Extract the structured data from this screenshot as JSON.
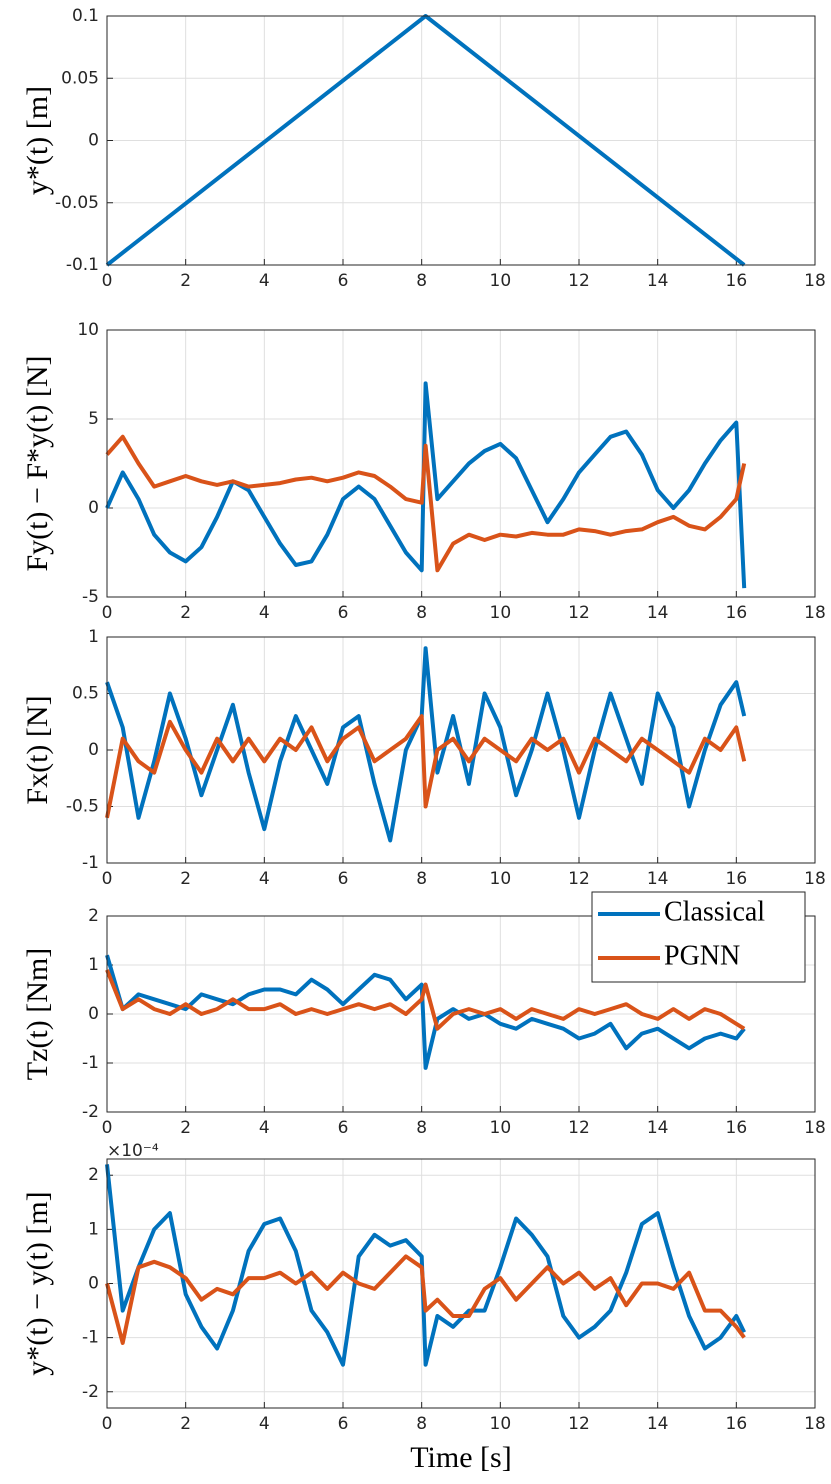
{
  "chart_data": [
    {
      "type": "line",
      "ylabel": "y*(t) [m]",
      "xlim": [
        0,
        18
      ],
      "xticks": [
        0,
        2,
        4,
        6,
        8,
        10,
        12,
        14,
        16,
        18
      ],
      "ylim": [
        -0.1,
        0.1
      ],
      "yticks": [
        -0.1,
        -0.05,
        0,
        0.05,
        0.1
      ],
      "grid": true,
      "x": [
        0,
        8.1,
        16.2
      ],
      "series": [
        {
          "color": "#0072bd",
          "values": [
            -0.1,
            0.1,
            -0.1
          ]
        }
      ]
    },
    {
      "type": "line",
      "ylabel": "Fy(t) − F*y(t) [N]",
      "xlim": [
        0,
        18
      ],
      "xticks": [
        0,
        2,
        4,
        6,
        8,
        10,
        12,
        14,
        16,
        18
      ],
      "ylim": [
        -5,
        10
      ],
      "yticks": [
        -5,
        0,
        5,
        10
      ],
      "grid": true,
      "x": [
        0,
        0.4,
        0.8,
        1.2,
        1.6,
        2.0,
        2.4,
        2.8,
        3.2,
        3.6,
        4.0,
        4.4,
        4.8,
        5.2,
        5.6,
        6.0,
        6.4,
        6.8,
        7.2,
        7.6,
        8.0,
        8.1,
        8.4,
        8.8,
        9.2,
        9.6,
        10.0,
        10.4,
        10.8,
        11.2,
        11.6,
        12.0,
        12.4,
        12.8,
        13.2,
        13.6,
        14.0,
        14.4,
        14.8,
        15.2,
        15.6,
        16.0,
        16.2
      ],
      "series": [
        {
          "color": "#0072bd",
          "values": [
            0,
            2,
            0.5,
            -1.5,
            -2.5,
            -3,
            -2.2,
            -0.5,
            1.5,
            1,
            -0.5,
            -2,
            -3.2,
            -3,
            -1.5,
            0.5,
            1.2,
            0.5,
            -1,
            -2.5,
            -3.5,
            7,
            0.5,
            1.5,
            2.5,
            3.2,
            3.6,
            2.8,
            1,
            -0.8,
            0.5,
            2,
            3,
            4,
            4.3,
            3,
            1,
            0,
            1,
            2.5,
            3.8,
            4.8,
            -4.5
          ]
        },
        {
          "color": "#d95319",
          "values": [
            3,
            4,
            2.5,
            1.2,
            1.5,
            1.8,
            1.5,
            1.3,
            1.5,
            1.2,
            1.3,
            1.4,
            1.6,
            1.7,
            1.5,
            1.7,
            2,
            1.8,
            1.2,
            0.5,
            0.3,
            3.5,
            -3.5,
            -2,
            -1.5,
            -1.8,
            -1.5,
            -1.6,
            -1.4,
            -1.5,
            -1.5,
            -1.2,
            -1.3,
            -1.5,
            -1.3,
            -1.2,
            -0.8,
            -0.5,
            -1,
            -1.2,
            -0.5,
            0.5,
            2.5
          ]
        }
      ]
    },
    {
      "type": "line",
      "ylabel": "Fx(t) [N]",
      "xlim": [
        0,
        18
      ],
      "xticks": [
        0,
        2,
        4,
        6,
        8,
        10,
        12,
        14,
        16,
        18
      ],
      "ylim": [
        -1,
        1
      ],
      "yticks": [
        -1,
        -0.5,
        0,
        0.5,
        1
      ],
      "grid": true,
      "x": [
        0,
        0.4,
        0.8,
        1.2,
        1.6,
        2.0,
        2.4,
        2.8,
        3.2,
        3.6,
        4.0,
        4.4,
        4.8,
        5.2,
        5.6,
        6.0,
        6.4,
        6.8,
        7.2,
        7.6,
        8.0,
        8.1,
        8.4,
        8.8,
        9.2,
        9.6,
        10.0,
        10.4,
        10.8,
        11.2,
        11.6,
        12.0,
        12.4,
        12.8,
        13.2,
        13.6,
        14.0,
        14.4,
        14.8,
        15.2,
        15.6,
        16.0,
        16.2
      ],
      "series": [
        {
          "color": "#0072bd",
          "values": [
            0.6,
            0.2,
            -0.6,
            -0.1,
            0.5,
            0.1,
            -0.4,
            0,
            0.4,
            -0.2,
            -0.7,
            -0.1,
            0.3,
            0,
            -0.3,
            0.2,
            0.3,
            -0.3,
            -0.8,
            0,
            0.3,
            0.9,
            -0.2,
            0.3,
            -0.3,
            0.5,
            0.2,
            -0.4,
            0,
            0.5,
            0,
            -0.6,
            0,
            0.5,
            0.1,
            -0.3,
            0.5,
            0.2,
            -0.5,
            0,
            0.4,
            0.6,
            0.3
          ]
        },
        {
          "color": "#d95319",
          "values": [
            -0.6,
            0.1,
            -0.1,
            -0.2,
            0.25,
            0,
            -0.2,
            0.1,
            -0.1,
            0.1,
            -0.1,
            0.1,
            0,
            0.2,
            -0.1,
            0.1,
            0.2,
            -0.1,
            0,
            0.1,
            0.3,
            -0.5,
            0,
            0.1,
            -0.1,
            0.1,
            0,
            -0.1,
            0.1,
            0,
            0.1,
            -0.2,
            0.1,
            0,
            -0.1,
            0.1,
            0,
            -0.1,
            -0.2,
            0.1,
            0,
            0.2,
            -0.1
          ]
        }
      ]
    },
    {
      "type": "line",
      "ylabel": "Tz(t) [Nm]",
      "xlim": [
        0,
        18
      ],
      "xticks": [
        0,
        2,
        4,
        6,
        8,
        10,
        12,
        14,
        16,
        18
      ],
      "ylim": [
        -2,
        2
      ],
      "yticks": [
        -2,
        -1,
        0,
        1,
        2
      ],
      "grid": true,
      "legend": "northeast",
      "x": [
        0,
        0.4,
        0.8,
        1.2,
        1.6,
        2.0,
        2.4,
        2.8,
        3.2,
        3.6,
        4.0,
        4.4,
        4.8,
        5.2,
        5.6,
        6.0,
        6.4,
        6.8,
        7.2,
        7.6,
        8.0,
        8.1,
        8.4,
        8.8,
        9.2,
        9.6,
        10.0,
        10.4,
        10.8,
        11.2,
        11.6,
        12.0,
        12.4,
        12.8,
        13.2,
        13.6,
        14.0,
        14.4,
        14.8,
        15.2,
        15.6,
        16.0,
        16.2
      ],
      "series": [
        {
          "name": "Classical",
          "color": "#0072bd",
          "values": [
            1.2,
            0.1,
            0.4,
            0.3,
            0.2,
            0.1,
            0.4,
            0.3,
            0.2,
            0.4,
            0.5,
            0.5,
            0.4,
            0.7,
            0.5,
            0.2,
            0.5,
            0.8,
            0.7,
            0.3,
            0.6,
            -1.1,
            -0.1,
            0.1,
            -0.1,
            0,
            -0.2,
            -0.3,
            -0.1,
            -0.2,
            -0.3,
            -0.5,
            -0.4,
            -0.2,
            -0.7,
            -0.4,
            -0.3,
            -0.5,
            -0.7,
            -0.5,
            -0.4,
            -0.5,
            -0.3
          ]
        },
        {
          "name": "PGNN",
          "color": "#d95319",
          "values": [
            0.9,
            0.1,
            0.3,
            0.1,
            0,
            0.2,
            0,
            0.1,
            0.3,
            0.1,
            0.1,
            0.2,
            0,
            0.1,
            0,
            0.1,
            0.2,
            0.1,
            0.2,
            0,
            0.3,
            0.6,
            -0.3,
            0,
            0.1,
            0,
            0.1,
            -0.1,
            0.1,
            0,
            -0.1,
            0.1,
            0,
            0.1,
            0.2,
            0,
            -0.1,
            0.1,
            -0.1,
            0.1,
            0,
            -0.2,
            -0.3
          ]
        }
      ]
    },
    {
      "type": "line",
      "ylabel": "y*(t) − y(t) [m]",
      "xlabel": "Time [s]",
      "y_multiplier": "×10⁻⁴",
      "xlim": [
        0,
        18
      ],
      "xticks": [
        0,
        2,
        4,
        6,
        8,
        10,
        12,
        14,
        16,
        18
      ],
      "ylim": [
        -2.3,
        2.3
      ],
      "yticks": [
        -2,
        -1,
        0,
        1,
        2
      ],
      "grid": true,
      "x": [
        0,
        0.4,
        0.8,
        1.2,
        1.6,
        2.0,
        2.4,
        2.8,
        3.2,
        3.6,
        4.0,
        4.4,
        4.8,
        5.2,
        5.6,
        6.0,
        6.4,
        6.8,
        7.2,
        7.6,
        8.0,
        8.1,
        8.4,
        8.8,
        9.2,
        9.6,
        10.0,
        10.4,
        10.8,
        11.2,
        11.6,
        12.0,
        12.4,
        12.8,
        13.2,
        13.6,
        14.0,
        14.4,
        14.8,
        15.2,
        15.6,
        16.0,
        16.2
      ],
      "series": [
        {
          "color": "#0072bd",
          "values": [
            2.2,
            -0.5,
            0.3,
            1.0,
            1.3,
            -0.2,
            -0.8,
            -1.2,
            -0.5,
            0.6,
            1.1,
            1.2,
            0.6,
            -0.5,
            -0.9,
            -1.5,
            0.5,
            0.9,
            0.7,
            0.8,
            0.5,
            -1.5,
            -0.6,
            -0.8,
            -0.5,
            -0.5,
            0.3,
            1.2,
            0.9,
            0.5,
            -0.6,
            -1.0,
            -0.8,
            -0.5,
            0.2,
            1.1,
            1.3,
            0.3,
            -0.6,
            -1.2,
            -1.0,
            -0.6,
            -0.9
          ]
        },
        {
          "color": "#d95319",
          "values": [
            0,
            -1.1,
            0.3,
            0.4,
            0.3,
            0.1,
            -0.3,
            -0.1,
            -0.2,
            0.1,
            0.1,
            0.2,
            0,
            0.2,
            -0.1,
            0.2,
            0,
            -0.1,
            0.2,
            0.5,
            0.3,
            -0.5,
            -0.3,
            -0.6,
            -0.6,
            -0.1,
            0.1,
            -0.3,
            0,
            0.3,
            0,
            0.2,
            -0.1,
            0.1,
            -0.4,
            0,
            0,
            -0.1,
            0.2,
            -0.5,
            -0.5,
            -0.8,
            -1.0
          ]
        }
      ]
    }
  ]
}
